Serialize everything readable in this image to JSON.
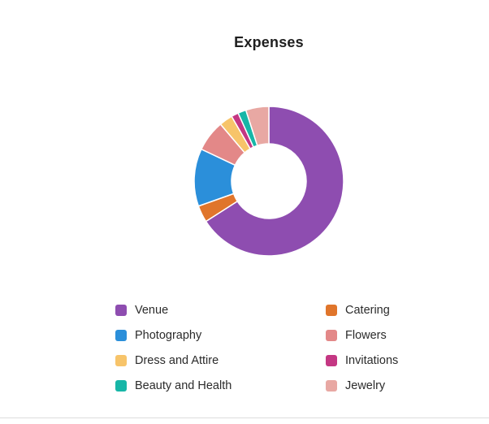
{
  "chart_data": {
    "type": "pie",
    "title": "Expenses",
    "donut": true,
    "legend_position": "bottom",
    "categories": [
      "Venue",
      "Catering",
      "Photography",
      "Flowers",
      "Dress and Attire",
      "Invitations",
      "Beauty and Health",
      "Jewelry"
    ],
    "values": [
      63.5,
      3.5,
      12.0,
      6.5,
      2.8,
      1.5,
      1.7,
      4.8
    ],
    "value_unit": "percent",
    "colors": [
      "#8E4DB0",
      "#E0752B",
      "#2B8FDA",
      "#E38888",
      "#F7C46A",
      "#C43783",
      "#17B6A7",
      "#E8A8A3"
    ]
  }
}
